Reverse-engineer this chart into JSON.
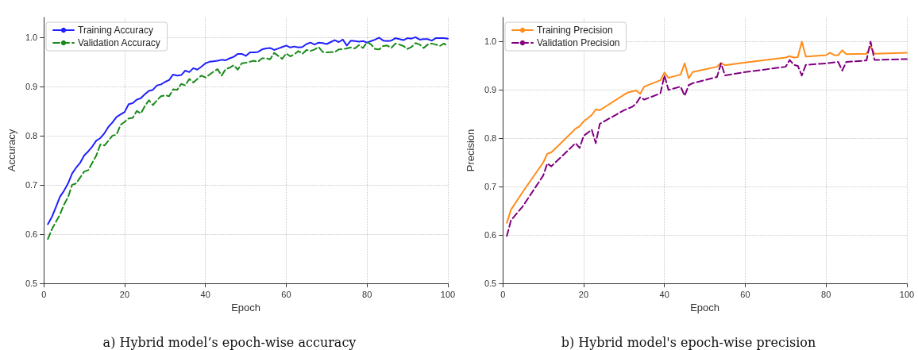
{
  "chart_data": [
    {
      "type": "line",
      "xlabel": "Epoch",
      "ylabel": "Accuracy",
      "xlim": [
        0,
        100
      ],
      "xticks": [
        0,
        20,
        40,
        60,
        80,
        100
      ],
      "ylim": [
        0.5,
        1.04
      ],
      "yticks": [
        0.5,
        0.6,
        0.7,
        0.8,
        0.9,
        {
          "value": 1,
          "label": "1.0"
        }
      ],
      "grid": true,
      "legend": "top left",
      "marker": "none",
      "annotations": [
        "a) Hybrid model’s epoch-wise accuracy"
      ],
      "series": [
        {
          "name": "Training Accuracy",
          "color": "#2020ff",
          "line_style": "solid",
          "x": [
            1,
            2,
            3,
            4,
            5,
            6,
            7,
            8,
            9,
            10,
            11,
            12,
            13,
            14,
            15,
            16,
            17,
            18,
            19,
            20,
            21,
            22,
            23,
            24,
            25,
            26,
            27,
            28,
            29,
            30,
            31,
            32,
            33,
            34,
            35,
            36,
            37,
            38,
            39,
            40,
            41,
            42,
            43,
            44,
            45,
            46,
            47,
            48,
            49,
            50,
            51,
            52,
            53,
            54,
            55,
            56,
            57,
            58,
            59,
            60,
            61,
            62,
            63,
            64,
            65,
            66,
            67,
            68,
            69,
            70,
            71,
            72,
            73,
            74,
            75,
            76,
            77,
            78,
            79,
            80,
            81,
            82,
            83,
            84,
            85,
            86,
            87,
            88,
            89,
            90,
            91,
            92,
            93,
            94,
            95,
            96,
            97,
            98,
            99,
            100
          ],
          "values": [
            0.62,
            0.635,
            0.655,
            0.676,
            0.688,
            0.703,
            0.723,
            0.735,
            0.745,
            0.76,
            0.768,
            0.778,
            0.79,
            0.795,
            0.805,
            0.818,
            0.827,
            0.838,
            0.843,
            0.848,
            0.864,
            0.866,
            0.873,
            0.876,
            0.884,
            0.891,
            0.893,
            0.902,
            0.904,
            0.909,
            0.913,
            0.924,
            0.922,
            0.923,
            0.932,
            0.929,
            0.937,
            0.934,
            0.94,
            0.947,
            0.95,
            0.951,
            0.952,
            0.954,
            0.953,
            0.957,
            0.96,
            0.966,
            0.966,
            0.962,
            0.969,
            0.969,
            0.97,
            0.975,
            0.977,
            0.978,
            0.974,
            0.977,
            0.98,
            0.983,
            0.979,
            0.981,
            0.979,
            0.98,
            0.986,
            0.989,
            0.985,
            0.989,
            0.988,
            0.986,
            0.99,
            0.994,
            0.99,
            0.995,
            0.983,
            0.993,
            0.992,
            0.991,
            0.992,
            0.989,
            0.992,
            0.995,
            0.999,
            0.993,
            0.992,
            0.993,
            0.998,
            0.996,
            0.994,
            0.998,
            0.997,
            1.0,
            0.995,
            0.996,
            0.996,
            0.993,
            0.998,
            0.998,
            0.998,
            0.997
          ]
        },
        {
          "name": "Validation Accuracy",
          "color": "#1a8a1a",
          "line_style": "dashed",
          "x": [
            1,
            2,
            3,
            4,
            5,
            6,
            7,
            8,
            9,
            10,
            11,
            12,
            13,
            14,
            15,
            16,
            17,
            18,
            19,
            20,
            21,
            22,
            23,
            24,
            25,
            26,
            27,
            28,
            29,
            30,
            31,
            32,
            33,
            34,
            35,
            36,
            37,
            38,
            39,
            40,
            41,
            42,
            43,
            44,
            45,
            46,
            47,
            48,
            49,
            50,
            52,
            53,
            54,
            55,
            56,
            57,
            58,
            59,
            60,
            61,
            62,
            63,
            64,
            65,
            66,
            67,
            68,
            69,
            70,
            72,
            73,
            75,
            76,
            77,
            78,
            79,
            80,
            81,
            82,
            83,
            84,
            85,
            86,
            87,
            88,
            89,
            90,
            91,
            92,
            93,
            94,
            95,
            96,
            97,
            98,
            99,
            100
          ],
          "values": [
            0.59,
            0.61,
            0.625,
            0.64,
            0.66,
            0.675,
            0.7,
            0.703,
            0.715,
            0.727,
            0.73,
            0.745,
            0.76,
            0.782,
            0.78,
            0.79,
            0.8,
            0.802,
            0.822,
            0.828,
            0.835,
            0.836,
            0.85,
            0.845,
            0.86,
            0.872,
            0.862,
            0.872,
            0.88,
            0.882,
            0.88,
            0.894,
            0.893,
            0.905,
            0.902,
            0.915,
            0.908,
            0.915,
            0.922,
            0.918,
            0.924,
            0.93,
            0.935,
            0.922,
            0.935,
            0.938,
            0.943,
            0.934,
            0.947,
            0.948,
            0.952,
            0.95,
            0.957,
            0.957,
            0.955,
            0.968,
            0.962,
            0.956,
            0.967,
            0.961,
            0.965,
            0.972,
            0.966,
            0.974,
            0.972,
            0.975,
            0.98,
            0.97,
            0.969,
            0.97,
            0.975,
            0.977,
            0.979,
            0.977,
            0.984,
            0.978,
            0.99,
            0.985,
            0.976,
            0.975,
            0.982,
            0.983,
            0.978,
            0.987,
            0.985,
            0.982,
            0.976,
            0.98,
            0.988,
            0.985,
            0.978,
            0.985,
            0.987,
            0.985,
            0.982,
            0.987,
            0.982
          ]
        }
      ]
    },
    {
      "type": "line",
      "xlabel": "Epoch",
      "ylabel": "Precision",
      "xlim": [
        0,
        100
      ],
      "xticks": [
        0,
        20,
        40,
        60,
        80,
        100
      ],
      "ylim": [
        0.5,
        1.05
      ],
      "yticks": [
        0.5,
        0.6,
        0.7,
        0.8,
        0.9,
        {
          "value": 1,
          "label": "1.0"
        }
      ],
      "grid": true,
      "legend": "top left",
      "marker": "none",
      "annotations": [
        "b) Hybrid model's epoch-wise precision"
      ],
      "series": [
        {
          "name": "Training Precision",
          "color": "#ff8c1a",
          "line_style": "solid",
          "x": [
            1,
            2,
            5,
            10,
            11,
            12,
            15,
            18,
            19,
            20,
            22,
            23,
            24,
            30,
            31,
            33,
            34,
            35,
            39,
            40,
            41,
            44,
            45,
            46,
            47,
            53,
            54,
            55,
            60,
            70,
            71,
            72,
            73,
            74,
            75,
            80,
            81,
            82,
            83,
            84,
            85,
            90,
            91,
            92,
            100
          ],
          "values": [
            0.625,
            0.652,
            0.69,
            0.75,
            0.768,
            0.771,
            0.795,
            0.82,
            0.825,
            0.835,
            0.848,
            0.86,
            0.858,
            0.89,
            0.895,
            0.899,
            0.892,
            0.907,
            0.92,
            0.936,
            0.925,
            0.932,
            0.955,
            0.924,
            0.937,
            0.948,
            0.956,
            0.951,
            0.957,
            0.967,
            0.97,
            0.967,
            0.968,
            1.0,
            0.969,
            0.972,
            0.977,
            0.972,
            0.972,
            0.982,
            0.974,
            0.975,
            0.99,
            0.975,
            0.977
          ]
        },
        {
          "name": "Validation Precision",
          "color": "#800080",
          "line_style": "dashed",
          "x": [
            1,
            2,
            5,
            10,
            11,
            12,
            18,
            19,
            20,
            22,
            23,
            24,
            30,
            32,
            33,
            34,
            35,
            39,
            40,
            41,
            44,
            45,
            46,
            47,
            53,
            54,
            55,
            60,
            70,
            71,
            72,
            73,
            74,
            75,
            80,
            83,
            84,
            85,
            90,
            91,
            92,
            100
          ],
          "values": [
            0.598,
            0.63,
            0.66,
            0.723,
            0.748,
            0.742,
            0.79,
            0.78,
            0.805,
            0.818,
            0.79,
            0.83,
            0.858,
            0.865,
            0.872,
            0.885,
            0.88,
            0.893,
            0.93,
            0.9,
            0.907,
            0.888,
            0.91,
            0.914,
            0.927,
            0.955,
            0.93,
            0.937,
            0.948,
            0.962,
            0.952,
            0.95,
            0.93,
            0.952,
            0.955,
            0.958,
            0.94,
            0.958,
            0.961,
            1.0,
            0.962,
            0.964
          ]
        }
      ]
    }
  ]
}
